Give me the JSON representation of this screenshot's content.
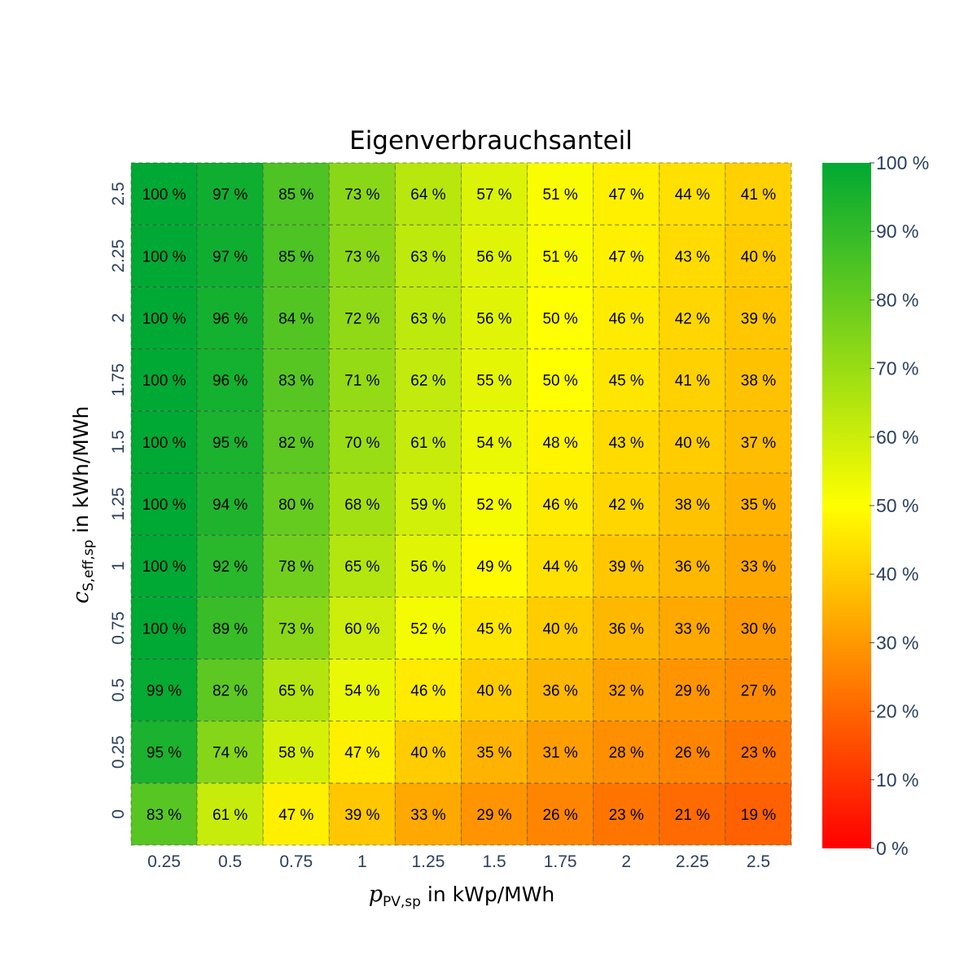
{
  "chart_data": {
    "type": "heatmap",
    "title": "Eigenverbrauchsanteil",
    "xlabel_symbol": "p",
    "xlabel_subscript": "PV,sp",
    "xlabel_unit": " in kWp/MWh",
    "ylabel_symbol": "c",
    "ylabel_subscript": "S,eff,sp",
    "ylabel_unit": " in kWh/MWh",
    "x_categories": [
      "0.25",
      "0.5",
      "0.75",
      "1",
      "1.25",
      "1.5",
      "1.75",
      "2",
      "2.25",
      "2.5"
    ],
    "y_categories": [
      "0",
      "0.25",
      "0.5",
      "0.75",
      "1",
      "1.25",
      "1.5",
      "1.75",
      "2",
      "2.25",
      "2.5"
    ],
    "value_unit": " %",
    "values": [
      [
        83,
        61,
        47,
        39,
        33,
        29,
        26,
        23,
        21,
        19
      ],
      [
        95,
        74,
        58,
        47,
        40,
        35,
        31,
        28,
        26,
        23
      ],
      [
        99,
        82,
        65,
        54,
        46,
        40,
        36,
        32,
        29,
        27
      ],
      [
        100,
        89,
        73,
        60,
        52,
        45,
        40,
        36,
        33,
        30
      ],
      [
        100,
        92,
        78,
        65,
        56,
        49,
        44,
        39,
        36,
        33
      ],
      [
        100,
        94,
        80,
        68,
        59,
        52,
        46,
        42,
        38,
        35
      ],
      [
        100,
        95,
        82,
        70,
        61,
        54,
        48,
        43,
        40,
        37
      ],
      [
        100,
        96,
        83,
        71,
        62,
        55,
        50,
        45,
        41,
        38
      ],
      [
        100,
        96,
        84,
        72,
        63,
        56,
        50,
        46,
        42,
        39
      ],
      [
        100,
        97,
        85,
        73,
        63,
        56,
        51,
        47,
        43,
        40
      ],
      [
        100,
        97,
        85,
        73,
        64,
        57,
        51,
        47,
        44,
        41
      ]
    ],
    "zrange": [
      0,
      100
    ],
    "colorscale": [
      [
        0,
        "#ff0000"
      ],
      [
        0.5,
        "#ffff00"
      ],
      [
        1,
        "#00a933"
      ]
    ],
    "colorbar_ticks": [
      "0 %",
      "10 %",
      "20 %",
      "30 %",
      "40 %",
      "50 %",
      "60 %",
      "70 %",
      "80 %",
      "90 %",
      "100 %"
    ],
    "grid": "dashed cell borders"
  }
}
